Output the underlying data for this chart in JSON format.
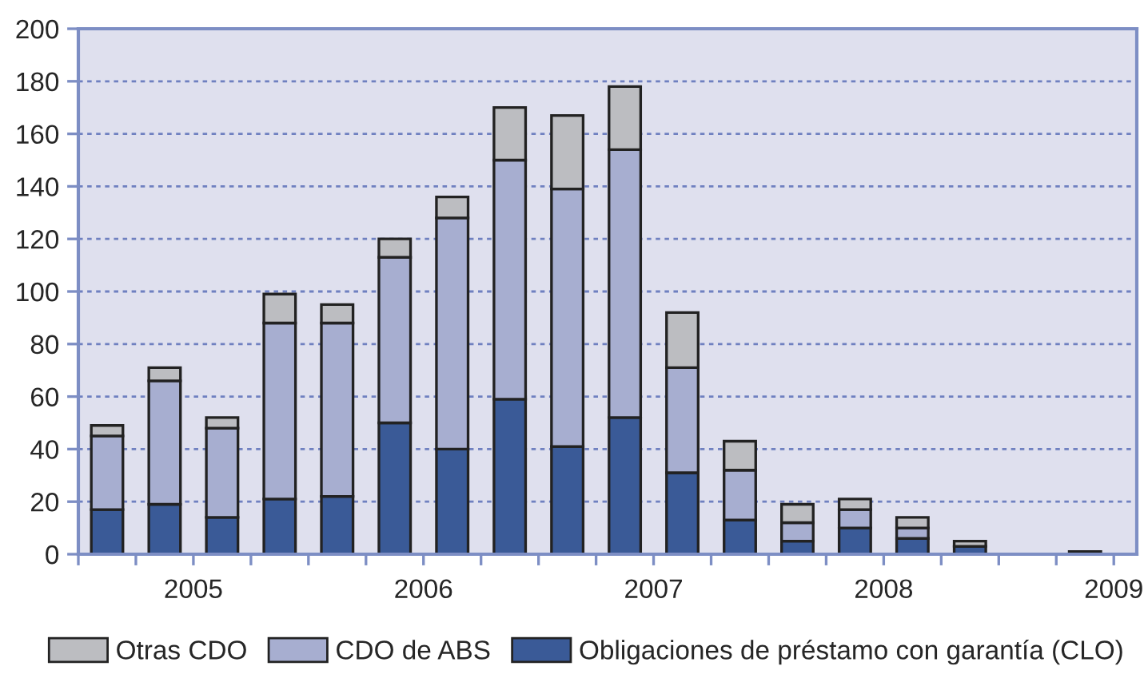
{
  "chart_data": {
    "type": "bar",
    "stacked": true,
    "x": [
      2005.125,
      2005.375,
      2005.625,
      2005.875,
      2006.125,
      2006.375,
      2006.625,
      2006.875,
      2007.125,
      2007.375,
      2007.625,
      2007.875,
      2008.125,
      2008.375,
      2008.625,
      2008.875,
      2009.125,
      2009.375
    ],
    "series": [
      {
        "name": "Obligaciones de préstamo con garantía (CLO)",
        "color": "#3a5a97",
        "values": [
          17,
          19,
          14,
          21,
          22,
          50,
          40,
          59,
          41,
          52,
          31,
          13,
          5,
          10,
          6,
          3,
          null,
          1
        ]
      },
      {
        "name": "CDO de ABS",
        "color": "#a7aed0",
        "values": [
          28,
          47,
          34,
          67,
          66,
          63,
          88,
          91,
          98,
          102,
          40,
          19,
          7,
          7,
          4,
          null,
          null,
          null
        ]
      },
      {
        "name": "Otras CDO",
        "color": "#bcbdc1",
        "values": [
          4,
          5,
          4,
          11,
          7,
          7,
          8,
          20,
          28,
          24,
          21,
          11,
          7,
          4,
          4,
          2,
          null,
          null
        ]
      }
    ],
    "xlim": [
      2005.0,
      2009.6
    ],
    "xticks": [
      {
        "value": 2005.0,
        "label": null
      },
      {
        "value": 2005.25,
        "label": null
      },
      {
        "value": 2005.5,
        "label": "2005"
      },
      {
        "value": 2005.75,
        "label": null
      },
      {
        "value": 2006.0,
        "label": null
      },
      {
        "value": 2006.25,
        "label": null
      },
      {
        "value": 2006.5,
        "label": "2006"
      },
      {
        "value": 2006.75,
        "label": null
      },
      {
        "value": 2007.0,
        "label": null
      },
      {
        "value": 2007.25,
        "label": null
      },
      {
        "value": 2007.5,
        "label": "2007"
      },
      {
        "value": 2007.75,
        "label": null
      },
      {
        "value": 2008.0,
        "label": null
      },
      {
        "value": 2008.25,
        "label": null
      },
      {
        "value": 2008.5,
        "label": "2008"
      },
      {
        "value": 2008.75,
        "label": null
      },
      {
        "value": 2009.0,
        "label": null
      },
      {
        "value": 2009.25,
        "label": null
      },
      {
        "value": 2009.5,
        "label": "2009"
      }
    ],
    "ylim": [
      0,
      200
    ],
    "yticks": [
      0,
      20,
      40,
      60,
      80,
      100,
      120,
      140,
      160,
      180,
      200
    ],
    "grid": "y",
    "legend": "bottom"
  }
}
